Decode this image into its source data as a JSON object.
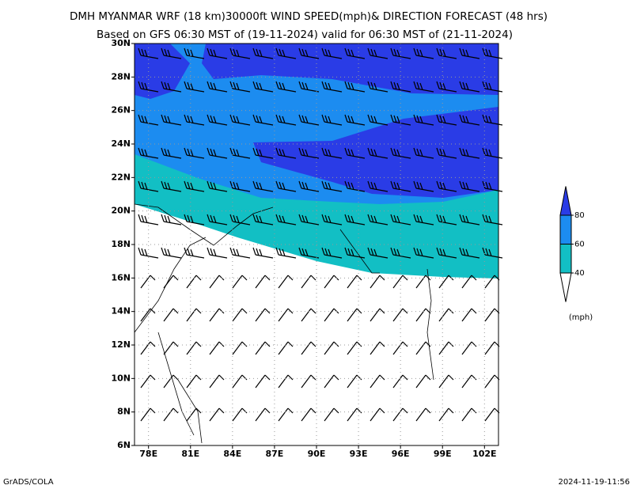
{
  "title_lines": [
    "DMH MYANMAR WRF (18 km)30000ft WIND SPEED(mph)& DIRECTION FORECAST (48 hrs)",
    "Based on GFS 06:30 MST of (19-11-2024) valid for 06:30 MST of (21-11-2024)"
  ],
  "map": {
    "xlim": [
      77,
      103
    ],
    "ylim": [
      6,
      30
    ],
    "xticks": [
      {
        "value": 78,
        "label": "78E"
      },
      {
        "value": 81,
        "label": "81E"
      },
      {
        "value": 84,
        "label": "84E"
      },
      {
        "value": 87,
        "label": "87E"
      },
      {
        "value": 90,
        "label": "90E"
      },
      {
        "value": 93,
        "label": "93E"
      },
      {
        "value": 96,
        "label": "96E"
      },
      {
        "value": 99,
        "label": "99E"
      },
      {
        "value": 102,
        "label": "102E"
      }
    ],
    "yticks": [
      {
        "value": 6,
        "label": "6N"
      },
      {
        "value": 8,
        "label": "8N"
      },
      {
        "value": 10,
        "label": "10N"
      },
      {
        "value": 12,
        "label": "12N"
      },
      {
        "value": 14,
        "label": "14N"
      },
      {
        "value": 16,
        "label": "16N"
      },
      {
        "value": 18,
        "label": "18N"
      },
      {
        "value": 20,
        "label": "20N"
      },
      {
        "value": 22,
        "label": "22N"
      },
      {
        "value": 24,
        "label": "24N"
      },
      {
        "value": 26,
        "label": "26N"
      },
      {
        "value": 28,
        "label": "28N"
      },
      {
        "value": 30,
        "label": "30N"
      }
    ],
    "grid": true
  },
  "colorbar": {
    "levels": [
      40,
      60,
      80
    ],
    "colors": [
      "#ffffff",
      "#12bfc4",
      "#1c8cf0",
      "#2a3ce6"
    ],
    "unit": "(mph)"
  },
  "footer": {
    "left": "GrADS/COLA",
    "right": "2024-11-19-11:56"
  }
}
